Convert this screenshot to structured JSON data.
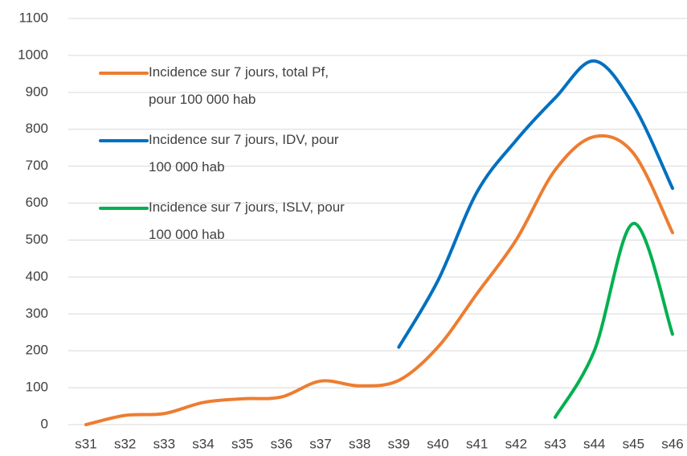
{
  "chart_data": {
    "type": "line",
    "categories": [
      "s31",
      "s32",
      "s33",
      "s34",
      "s35",
      "s36",
      "s37",
      "s38",
      "s39",
      "s40",
      "s41",
      "s42",
      "s43",
      "s44",
      "s45",
      "s46"
    ],
    "series": [
      {
        "name": "Incidence sur 7 jours, total Pf, pour 100 000 hab",
        "color": "#ed7d31",
        "values": [
          0,
          25,
          30,
          60,
          70,
          75,
          118,
          105,
          120,
          210,
          355,
          500,
          690,
          780,
          735,
          520
        ]
      },
      {
        "name": "Incidence sur 7 jours, IDV, pour 100 000 hab",
        "color": "#0070c0",
        "values": [
          null,
          null,
          null,
          null,
          null,
          null,
          null,
          null,
          210,
          390,
          630,
          770,
          885,
          985,
          865,
          640
        ]
      },
      {
        "name": "Incidence sur 7 jours, ISLV, pour 100 000 hab",
        "color": "#00b050",
        "values": [
          null,
          null,
          null,
          null,
          null,
          null,
          null,
          null,
          null,
          null,
          null,
          null,
          20,
          200,
          545,
          245
        ]
      }
    ],
    "ylim": [
      0,
      1100
    ],
    "yticks": [
      0,
      100,
      200,
      300,
      400,
      500,
      600,
      700,
      800,
      900,
      1000,
      1100
    ],
    "grid": true,
    "smooth": true,
    "legend": "top-left"
  }
}
